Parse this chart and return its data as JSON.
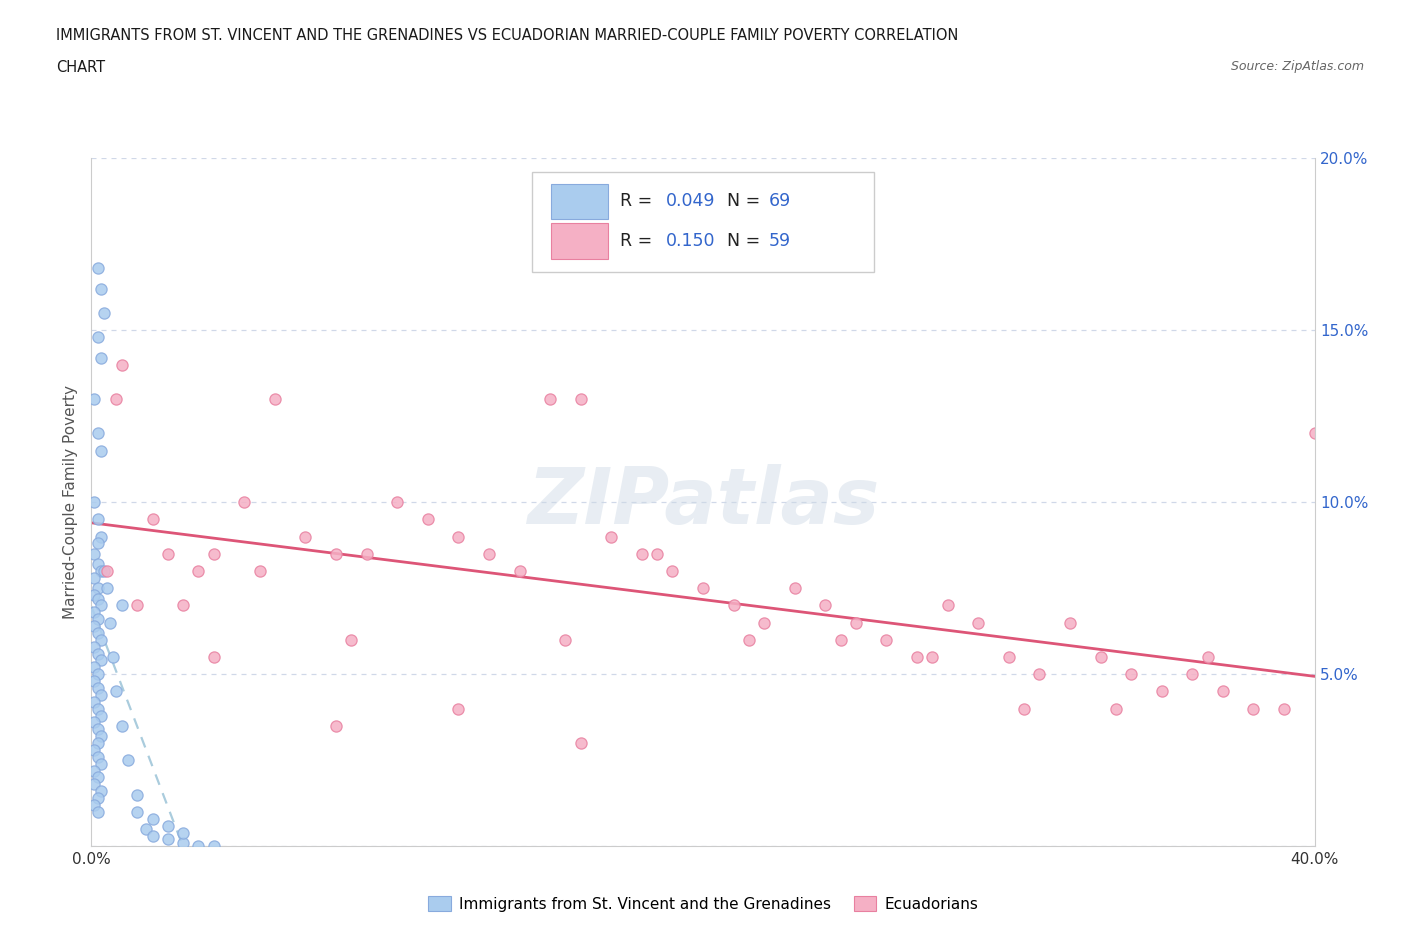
{
  "title_line1": "IMMIGRANTS FROM ST. VINCENT AND THE GRENADINES VS ECUADORIAN MARRIED-COUPLE FAMILY POVERTY CORRELATION",
  "title_line2": "CHART",
  "source_text": "Source: ZipAtlas.com",
  "ylabel": "Married-Couple Family Poverty",
  "xlim": [
    0.0,
    0.4
  ],
  "ylim": [
    0.0,
    0.2
  ],
  "blue_color": "#aaccee",
  "blue_edge": "#88aadd",
  "pink_color": "#f5b0c5",
  "pink_edge": "#e880a0",
  "trend_blue_color": "#6699cc",
  "trend_pink_color": "#dd6688",
  "trend_blue_dashed_color": "#aaccee",
  "watermark_color": "#c8d8e8",
  "blue_label": "Immigrants from St. Vincent and the Grenadines",
  "pink_label": "Ecuadorians",
  "legend_R_blue": "0.049",
  "legend_N_blue": "69",
  "legend_R_pink": "0.150",
  "legend_N_pink": "59",
  "value_color": "#3366cc",
  "label_color": "#222222",
  "axis_tick_color": "#3366cc",
  "grid_color": "#d0d8e8",
  "blue_x": [
    0.002,
    0.003,
    0.004,
    0.002,
    0.003,
    0.001,
    0.002,
    0.003,
    0.001,
    0.002,
    0.003,
    0.002,
    0.001,
    0.002,
    0.003,
    0.001,
    0.002,
    0.001,
    0.002,
    0.003,
    0.001,
    0.002,
    0.001,
    0.002,
    0.003,
    0.001,
    0.002,
    0.003,
    0.001,
    0.002,
    0.001,
    0.002,
    0.003,
    0.001,
    0.002,
    0.003,
    0.001,
    0.002,
    0.003,
    0.002,
    0.001,
    0.002,
    0.003,
    0.001,
    0.002,
    0.001,
    0.003,
    0.002,
    0.001,
    0.002,
    0.004,
    0.005,
    0.006,
    0.007,
    0.008,
    0.01,
    0.012,
    0.015,
    0.018,
    0.02,
    0.025,
    0.03,
    0.035,
    0.04,
    0.02,
    0.015,
    0.025,
    0.03,
    0.01
  ],
  "blue_y": [
    0.168,
    0.162,
    0.155,
    0.148,
    0.142,
    0.13,
    0.12,
    0.115,
    0.1,
    0.095,
    0.09,
    0.088,
    0.085,
    0.082,
    0.08,
    0.078,
    0.075,
    0.073,
    0.072,
    0.07,
    0.068,
    0.066,
    0.064,
    0.062,
    0.06,
    0.058,
    0.056,
    0.054,
    0.052,
    0.05,
    0.048,
    0.046,
    0.044,
    0.042,
    0.04,
    0.038,
    0.036,
    0.034,
    0.032,
    0.03,
    0.028,
    0.026,
    0.024,
    0.022,
    0.02,
    0.018,
    0.016,
    0.014,
    0.012,
    0.01,
    0.08,
    0.075,
    0.065,
    0.055,
    0.045,
    0.035,
    0.025,
    0.015,
    0.005,
    0.003,
    0.002,
    0.001,
    0.0,
    0.0,
    0.008,
    0.01,
    0.006,
    0.004,
    0.07
  ],
  "pink_x": [
    0.005,
    0.008,
    0.01,
    0.015,
    0.02,
    0.025,
    0.03,
    0.035,
    0.04,
    0.05,
    0.06,
    0.07,
    0.08,
    0.09,
    0.1,
    0.11,
    0.12,
    0.13,
    0.14,
    0.15,
    0.16,
    0.17,
    0.18,
    0.19,
    0.2,
    0.21,
    0.22,
    0.23,
    0.24,
    0.25,
    0.26,
    0.27,
    0.28,
    0.29,
    0.3,
    0.31,
    0.32,
    0.33,
    0.34,
    0.35,
    0.36,
    0.37,
    0.38,
    0.39,
    0.4,
    0.055,
    0.085,
    0.12,
    0.155,
    0.185,
    0.215,
    0.245,
    0.275,
    0.305,
    0.335,
    0.365,
    0.04,
    0.08,
    0.16
  ],
  "pink_y": [
    0.08,
    0.13,
    0.14,
    0.07,
    0.095,
    0.085,
    0.07,
    0.08,
    0.085,
    0.1,
    0.13,
    0.09,
    0.085,
    0.085,
    0.1,
    0.095,
    0.09,
    0.085,
    0.08,
    0.13,
    0.13,
    0.09,
    0.085,
    0.08,
    0.075,
    0.07,
    0.065,
    0.075,
    0.07,
    0.065,
    0.06,
    0.055,
    0.07,
    0.065,
    0.055,
    0.05,
    0.065,
    0.055,
    0.05,
    0.045,
    0.05,
    0.045,
    0.04,
    0.04,
    0.12,
    0.08,
    0.06,
    0.04,
    0.06,
    0.085,
    0.06,
    0.06,
    0.055,
    0.04,
    0.04,
    0.055,
    0.055,
    0.035,
    0.03
  ]
}
